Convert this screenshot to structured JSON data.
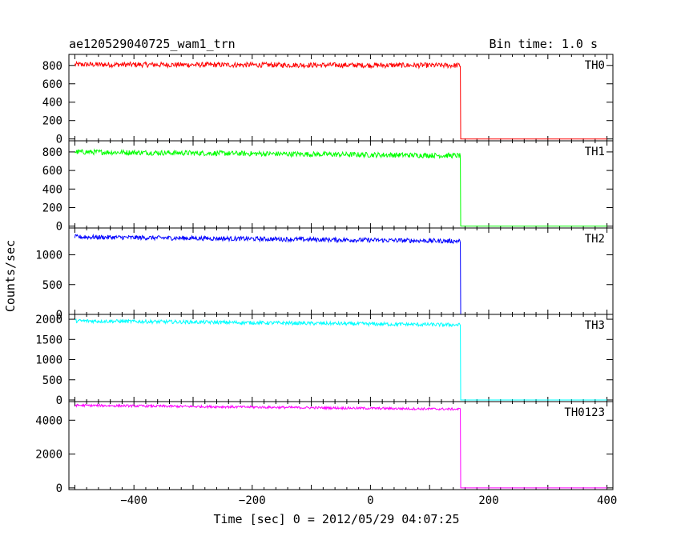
{
  "chart_data": {
    "type": "line",
    "title": "ae120529040725_wam1_trn",
    "bin_time_label": "Bin time: 1.0 s",
    "xlabel": "Time [sec] 0 = 2012/05/29 04:07:25",
    "ylabel": "Counts/sec",
    "xlim": [
      -510,
      410
    ],
    "x_ticks": [
      -400,
      -200,
      0,
      200,
      400
    ],
    "x_tick_labels": [
      "−400",
      "−200",
      "0",
      "200",
      "400"
    ],
    "data_start": -500,
    "step_time": 152,
    "data_end": 400,
    "panels": [
      {
        "name": "TH0",
        "color": "#ff0000",
        "ylim": [
          -20,
          920
        ],
        "y_ticks": [
          0,
          200,
          400,
          600,
          800
        ],
        "y_tick_labels": [
          "0",
          "200",
          "400",
          "600",
          "800"
        ],
        "level_start": 810,
        "level_end": 800,
        "noise": 28,
        "post_level": 0
      },
      {
        "name": "TH1",
        "color": "#00ff00",
        "ylim": [
          -20,
          920
        ],
        "y_ticks": [
          0,
          200,
          400,
          600,
          800
        ],
        "y_tick_labels": [
          "0",
          "200",
          "400",
          "600",
          "800"
        ],
        "level_start": 800,
        "level_end": 760,
        "noise": 28,
        "post_level": 0
      },
      {
        "name": "TH2",
        "color": "#0000ff",
        "ylim": [
          0,
          1450
        ],
        "y_ticks": [
          0,
          500,
          1000
        ],
        "y_tick_labels": [
          "0",
          "500",
          "1000"
        ],
        "level_start": 1300,
        "level_end": 1230,
        "noise": 38,
        "post_level": 0
      },
      {
        "name": "TH3",
        "color": "#00ffff",
        "ylim": [
          -40,
          2120
        ],
        "y_ticks": [
          0,
          500,
          1000,
          1500,
          2000
        ],
        "y_tick_labels": [
          "0",
          "500",
          "1000",
          "1500",
          "2000"
        ],
        "level_start": 1960,
        "level_end": 1860,
        "noise": 45,
        "post_level": 0
      },
      {
        "name": "TH0123",
        "color": "#ff00ff",
        "ylim": [
          -100,
          5100
        ],
        "y_ticks": [
          0,
          2000,
          4000
        ],
        "y_tick_labels": [
          "0",
          "2000",
          "4000"
        ],
        "level_start": 4880,
        "level_end": 4650,
        "noise": 70,
        "post_level": 0
      }
    ]
  }
}
